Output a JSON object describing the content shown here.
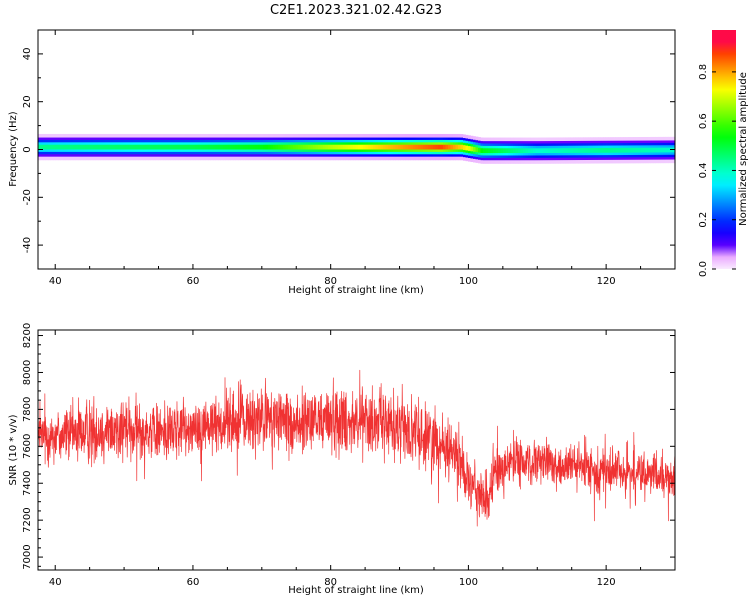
{
  "title": "C2E1.2023.321.02.42.G23",
  "chart_data": [
    {
      "type": "heatmap",
      "xlabel": "Height of straight line (km)",
      "ylabel": "Frequency (Hz)",
      "xlim": [
        37.5,
        130
      ],
      "ylim": [
        -50,
        50
      ],
      "xticks": [
        40,
        60,
        80,
        100,
        120
      ],
      "yticks": [
        -40,
        -20,
        0,
        20,
        40
      ],
      "xtick_labels": [
        "40",
        "60",
        "80",
        "100",
        "120"
      ],
      "ytick_labels": [
        "-40",
        "-20",
        "0",
        "20",
        "40"
      ],
      "colorbar": {
        "label": "Normalized spectral amplitude",
        "range": [
          0,
          0.97
        ],
        "ticks": [
          0.0,
          0.2,
          0.4,
          0.6,
          0.8
        ],
        "tick_labels": [
          "0.0",
          "0.2",
          "0.4",
          "0.6",
          "0.8"
        ],
        "colormap": "gist_rainbow"
      },
      "ridge_center_hz": {
        "x": [
          37.5,
          60,
          80,
          95,
          99,
          102,
          110,
          130
        ],
        "y": [
          1.0,
          1.0,
          1.0,
          1.0,
          1.0,
          -0.5,
          -0.5,
          -0.2
        ]
      },
      "ridge_peak_amplitude": {
        "x": [
          37.5,
          50,
          60,
          70,
          80,
          88,
          96,
          100,
          102,
          110,
          120,
          130
        ],
        "y": [
          0.45,
          0.48,
          0.5,
          0.55,
          0.7,
          0.8,
          0.9,
          0.75,
          0.55,
          0.4,
          0.45,
          0.4
        ]
      }
    },
    {
      "type": "line",
      "xlabel": "Height of straight line (km)",
      "ylabel": "SNR (10 * v/v)",
      "xlim": [
        37.5,
        130
      ],
      "ylim": [
        6930,
        8230
      ],
      "xticks": [
        40,
        60,
        80,
        100,
        120
      ],
      "yticks": [
        7000,
        7200,
        7400,
        7600,
        7800,
        8000,
        8200
      ],
      "xtick_labels": [
        "40",
        "60",
        "80",
        "100",
        "120"
      ],
      "ytick_labels": [
        "7000",
        "7200",
        "7400",
        "7600",
        "7800",
        "8000",
        "8200"
      ],
      "series": [
        {
          "color": "#f03232",
          "x": [
            37.5,
            40,
            45,
            50,
            55,
            60,
            65,
            70,
            75,
            80,
            85,
            90,
            95,
            98,
            100,
            101,
            102,
            103,
            104,
            106,
            110,
            115,
            120,
            125,
            130
          ],
          "y": [
            7650,
            7660,
            7680,
            7690,
            7680,
            7700,
            7730,
            7750,
            7720,
            7750,
            7740,
            7710,
            7640,
            7560,
            7440,
            7370,
            7300,
            7330,
            7460,
            7510,
            7510,
            7490,
            7470,
            7450,
            7420
          ],
          "spread": [
            160,
            170,
            180,
            170,
            170,
            170,
            180,
            190,
            190,
            200,
            200,
            190,
            180,
            170,
            150,
            150,
            160,
            150,
            140,
            130,
            130,
            130,
            130,
            130,
            130
          ]
        }
      ]
    }
  ]
}
